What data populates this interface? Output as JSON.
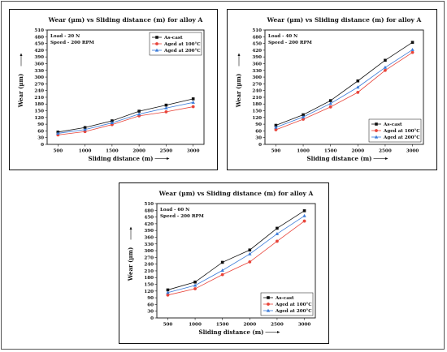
{
  "colors": {
    "as_cast": "#111111",
    "aged_100": "#e8443a",
    "aged_200": "#3a7ad8",
    "axis": "#111111"
  },
  "chart_data": [
    {
      "type": "line",
      "title": "Wear (µm) vs Sliding distance (m) for alloy A",
      "xlabel": "Sliding distance (m)",
      "ylabel": "Wear (µm)",
      "x": [
        500,
        1000,
        1500,
        2000,
        2500,
        3000
      ],
      "xlim": [
        300,
        3200
      ],
      "ylim": [
        0,
        510
      ],
      "yticks": [
        0,
        30,
        60,
        90,
        120,
        150,
        180,
        210,
        240,
        270,
        300,
        330,
        360,
        390,
        420,
        450,
        480,
        510
      ],
      "notes": [
        "Load - 20 N",
        "Speed - 200 RPM"
      ],
      "legend_position": "top-right",
      "series": [
        {
          "name": "As-cast",
          "values": [
            55,
            75,
            105,
            148,
            175,
            203
          ]
        },
        {
          "name": "Aged at 100°C",
          "values": [
            42,
            57,
            88,
            127,
            145,
            168
          ]
        },
        {
          "name": "Aged at 200°C",
          "values": [
            49,
            66,
            96,
            135,
            162,
            187
          ]
        }
      ]
    },
    {
      "type": "line",
      "title": "Wear (µm) vs Sliding distance (m) for alloy A",
      "xlabel": "Sliding distance (m)",
      "ylabel": "Wear (µm)",
      "x": [
        500,
        1000,
        1500,
        2000,
        2500,
        3000
      ],
      "xlim": [
        300,
        3200
      ],
      "ylim": [
        0,
        510
      ],
      "yticks": [
        0,
        30,
        60,
        90,
        120,
        150,
        180,
        210,
        240,
        270,
        300,
        330,
        360,
        390,
        420,
        450,
        480,
        510
      ],
      "notes": [
        "Load - 40 N",
        "Speed - 200 RPM"
      ],
      "legend_position": "bottom-right",
      "series": [
        {
          "name": "As-cast",
          "values": [
            85,
            132,
            195,
            283,
            375,
            455
          ]
        },
        {
          "name": "Aged at 100°C",
          "values": [
            65,
            112,
            167,
            232,
            330,
            410
          ]
        },
        {
          "name": "Aged at 200°C",
          "values": [
            76,
            122,
            182,
            255,
            343,
            422
          ]
        }
      ]
    },
    {
      "type": "line",
      "title": "Wear (µm) vs Sliding distance (m) for alloy A",
      "xlabel": "Sliding distance (m)",
      "ylabel": "Wear (µm)",
      "x": [
        500,
        1000,
        1500,
        2000,
        2500,
        3000
      ],
      "xlim": [
        300,
        3200
      ],
      "ylim": [
        0,
        510
      ],
      "yticks": [
        0,
        30,
        60,
        90,
        120,
        150,
        180,
        210,
        240,
        270,
        300,
        330,
        360,
        390,
        420,
        450,
        480,
        510
      ],
      "notes": [
        "Load - 60 N",
        "Speed - 200 RPM"
      ],
      "legend_position": "bottom-right",
      "series": [
        {
          "name": "As-cast",
          "values": [
            125,
            160,
            248,
            303,
            400,
            478
          ]
        },
        {
          "name": "Aged at 100°C",
          "values": [
            102,
            130,
            193,
            250,
            342,
            432
          ]
        },
        {
          "name": "Aged at 200°C",
          "values": [
            113,
            145,
            212,
            285,
            375,
            455
          ]
        }
      ]
    }
  ]
}
